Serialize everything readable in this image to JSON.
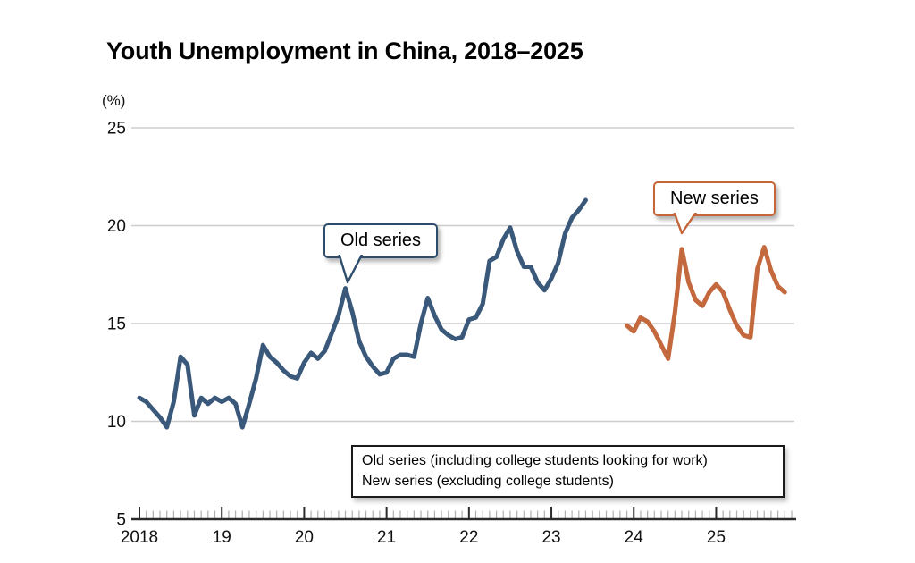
{
  "title": "Youth Unemployment in China, 2018–2025",
  "y_axis": {
    "unit": "(%)",
    "ticks": [
      5,
      10,
      15,
      20,
      25
    ],
    "min": 5,
    "max": 25
  },
  "x_axis": {
    "labels": [
      "2018",
      "19",
      "20",
      "21",
      "22",
      "23",
      "24",
      "25"
    ],
    "minor_tick": "monthly"
  },
  "callouts": {
    "old": {
      "label": "Old series"
    },
    "new": {
      "label": "New series"
    }
  },
  "legend": {
    "lines": [
      "Old series (including college students looking for work)",
      "New series (excluding college students)"
    ]
  },
  "colors": {
    "old_series": "#39587a",
    "new_series": "#c4683e",
    "gridline": "#cdcdcd",
    "axis": "#2b2b2b",
    "minor_tick": "#b0b0b0"
  },
  "chart_data": {
    "type": "line",
    "title": "Youth Unemployment in China, 2018–2025",
    "ylabel": "(%)",
    "ylim": [
      5,
      25
    ],
    "x_unit": "months, Jan 2018 – Dec 2025",
    "grid": "horizontal only",
    "series": [
      {
        "name": "Old series (including college students looking for work)",
        "period": "Jan 2018–Jun 2023",
        "color": "#39587a",
        "x_start_index": 0,
        "values": [
          11.2,
          11.0,
          10.6,
          10.2,
          9.7,
          11.0,
          13.3,
          12.9,
          10.3,
          11.2,
          10.9,
          11.2,
          11.0,
          11.2,
          10.9,
          9.7,
          10.9,
          12.2,
          13.9,
          13.3,
          13.0,
          12.6,
          12.3,
          12.2,
          13.0,
          13.5,
          13.2,
          13.6,
          14.5,
          15.4,
          16.8,
          15.6,
          14.1,
          13.3,
          12.8,
          12.4,
          12.5,
          13.2,
          13.4,
          13.4,
          13.3,
          15.0,
          16.3,
          15.4,
          14.7,
          14.4,
          14.2,
          14.3,
          15.2,
          15.3,
          16.0,
          18.2,
          18.4,
          19.3,
          19.9,
          18.7,
          17.9,
          17.9,
          17.1,
          16.7,
          17.3,
          18.1,
          19.6,
          20.4,
          20.8,
          21.3
        ]
      },
      {
        "name": "New series (excluding college students)",
        "period": "Dec 2023–Nov 2025",
        "color": "#c4683e",
        "x_start_index": 71,
        "values": [
          14.9,
          14.6,
          15.3,
          15.1,
          14.6,
          13.9,
          13.2,
          15.6,
          18.8,
          17.1,
          16.2,
          15.9,
          16.6,
          17.0,
          16.6,
          15.7,
          14.9,
          14.4,
          14.3,
          17.8,
          18.9,
          17.7,
          16.9,
          16.6
        ]
      }
    ]
  }
}
